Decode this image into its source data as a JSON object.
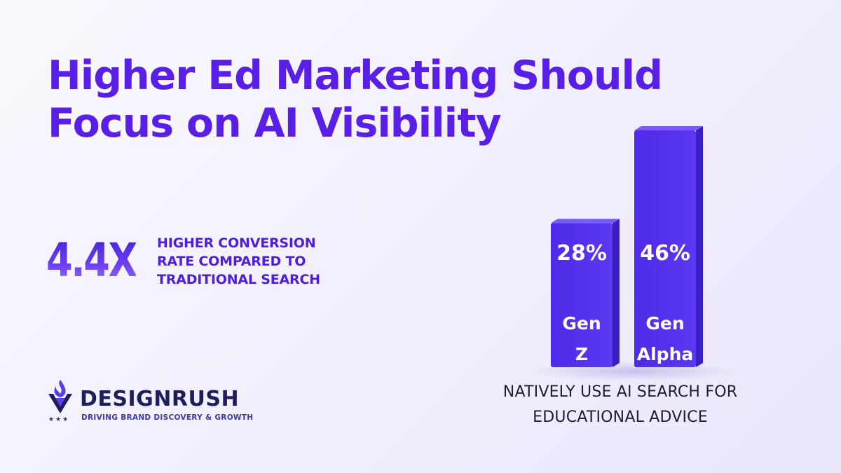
{
  "headline": {
    "line1": "Higher Ed Marketing Should",
    "line2": "Focus on AI Visibility"
  },
  "stat": {
    "value": "4.4X",
    "desc_line1": "HIGHER CONVERSION",
    "desc_line2": "RATE COMPARED TO",
    "desc_line3": "TRADITIONAL SEARCH"
  },
  "brand": {
    "name": "DESIGNRUSH",
    "tagline": "DRIVING BRAND DISCOVERY & GROWTH",
    "stars": "★★★",
    "icon": "designrush-logo-icon"
  },
  "chart_data": {
    "type": "bar",
    "categories": [
      "Gen Z",
      "Gen Alpha"
    ],
    "category_lines": [
      [
        "Gen",
        "Z"
      ],
      [
        "Gen",
        "Alpha"
      ]
    ],
    "values": [
      28,
      46
    ],
    "value_labels": [
      "28%",
      "46%"
    ],
    "ylim": [
      0,
      50
    ],
    "grid": false,
    "legend": "none",
    "caption_line1": "NATIVELY USE AI SEARCH FOR",
    "caption_line2": "EDUCATIONAL ADVICE",
    "colors": {
      "front": "#5530ee",
      "top": "#7a5bf6",
      "side": "#3a1fc4"
    }
  },
  "colors": {
    "headline": "#5a1fe6",
    "brand_dark": "#1c1f5c"
  }
}
